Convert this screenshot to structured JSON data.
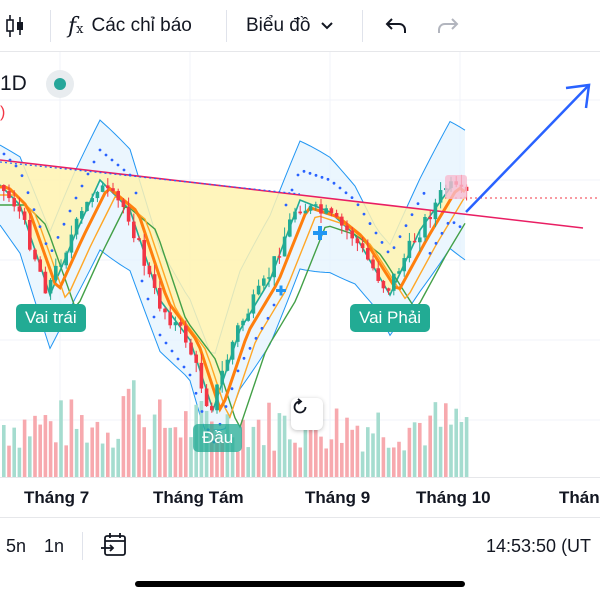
{
  "toolbar": {
    "indicators_label": "Các chỉ báo",
    "chart_type_label": "Biểu đồ",
    "icons": [
      "candles-icon",
      "fx-icon",
      "chevron-down-icon",
      "undo-icon",
      "redo-icon"
    ]
  },
  "legend": {
    "symbol_fragment": "1D",
    "paren_fragment": ")"
  },
  "pattern_labels": {
    "left_shoulder": "Vai trái",
    "head": "Đầu",
    "right_shoulder": "Vai Phải"
  },
  "time_axis": [
    "Tháng 7",
    "Tháng Tám",
    "Tháng 9",
    "Tháng 10",
    "Thán"
  ],
  "bottom_bar": {
    "range_5n": "5n",
    "range_1n": "1n",
    "clock": "14:53:50 (UT"
  },
  "colors": {
    "up": "#22ab94",
    "down": "#f23645",
    "neckline": "#e91e63",
    "arrow": "#2962ff",
    "pattern_fill": "#fff3b0",
    "band_fill": "#e3f2fd",
    "ema_fast": "#ff7f0e",
    "ema_slow": "#43a047"
  }
}
